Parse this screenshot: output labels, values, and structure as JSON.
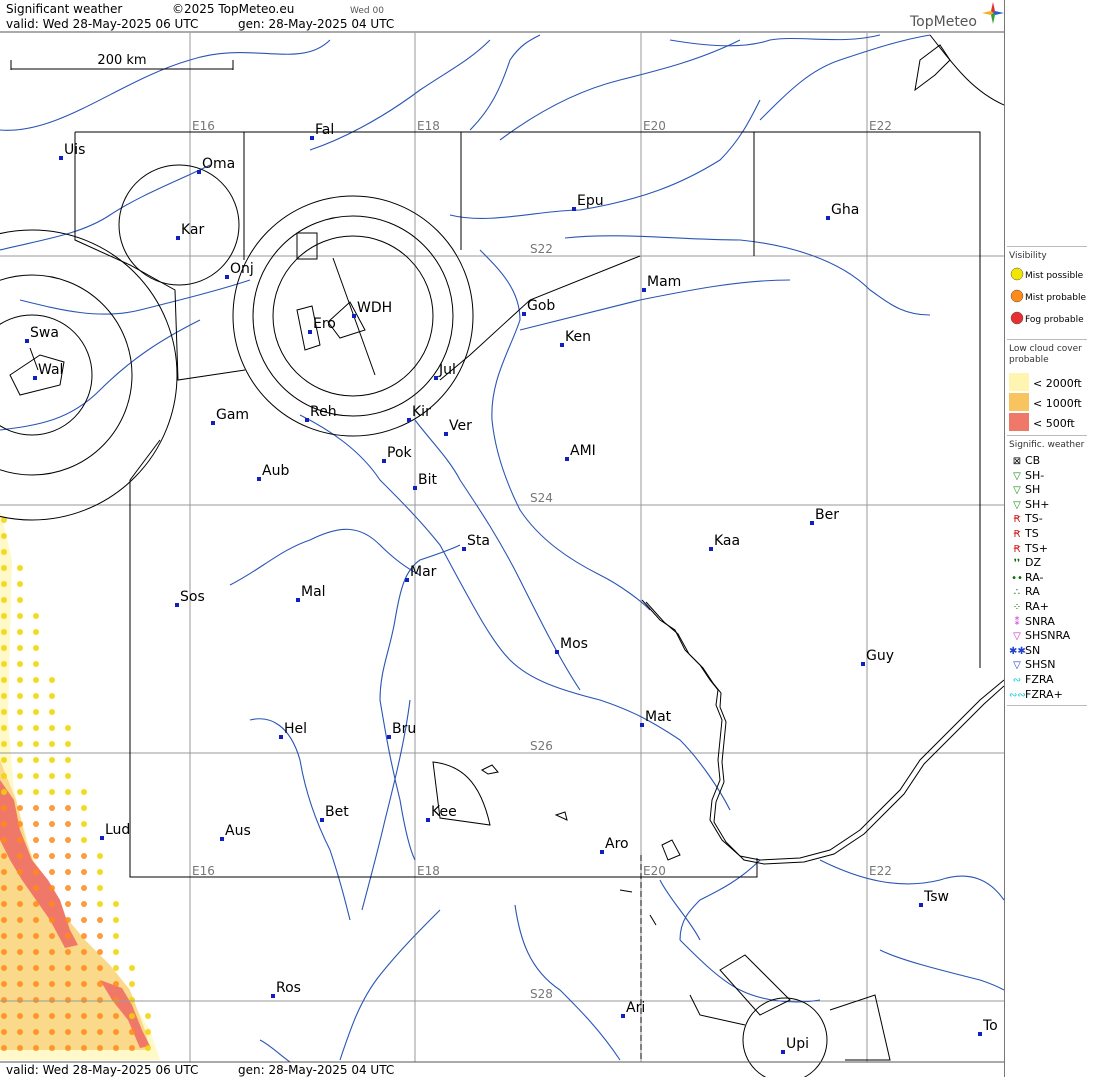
{
  "header": {
    "title": "Significant weather",
    "copyright": "©2025 TopMeteo.eu",
    "run": "Wed 00",
    "valid": "valid:  Wed  28-May-2025  06 UTC",
    "gen": "gen: 28-May-2025 04 UTC",
    "brand": "TopMeteo"
  },
  "footer": {
    "valid": "valid:  Wed  28-May-2025  06 UTC",
    "gen": "gen: 28-May-2025 04 UTC"
  },
  "scale_label": "200 km",
  "grid": {
    "lon_top": [
      {
        "label": "E16",
        "x": 16
      },
      {
        "label": "E18",
        "x": 18
      },
      {
        "label": "E20",
        "x": 20
      },
      {
        "label": "E22",
        "x": 22
      }
    ],
    "lon_bottom": [
      {
        "label": "E16",
        "x": 16
      },
      {
        "label": "E18",
        "x": 18
      },
      {
        "label": "E20",
        "x": 20
      },
      {
        "label": "E22",
        "x": 22
      }
    ],
    "lat": [
      {
        "label": "S22",
        "y": -22
      },
      {
        "label": "S24",
        "y": -24
      },
      {
        "label": "S26",
        "y": -26
      },
      {
        "label": "S28",
        "y": -28
      }
    ]
  },
  "places": [
    {
      "name": "Uis"
    },
    {
      "name": "Fal"
    },
    {
      "name": "Oma"
    },
    {
      "name": "Kar"
    },
    {
      "name": "Epu"
    },
    {
      "name": "Gha"
    },
    {
      "name": "Onj"
    },
    {
      "name": "Mam"
    },
    {
      "name": "Gob"
    },
    {
      "name": "WDH"
    },
    {
      "name": "Ero"
    },
    {
      "name": "Swa"
    },
    {
      "name": "Ken"
    },
    {
      "name": "Wal"
    },
    {
      "name": "Jul"
    },
    {
      "name": "Gam"
    },
    {
      "name": "Reh"
    },
    {
      "name": "Kir"
    },
    {
      "name": "Ver"
    },
    {
      "name": "Pok"
    },
    {
      "name": "AMI"
    },
    {
      "name": "Aub"
    },
    {
      "name": "Bit"
    },
    {
      "name": "Ber"
    },
    {
      "name": "Sta"
    },
    {
      "name": "Kaa"
    },
    {
      "name": "Mar"
    },
    {
      "name": "Sos"
    },
    {
      "name": "Mal"
    },
    {
      "name": "Mos"
    },
    {
      "name": "Guy"
    },
    {
      "name": "Mat"
    },
    {
      "name": "Hel"
    },
    {
      "name": "Bru"
    },
    {
      "name": "Bet"
    },
    {
      "name": "Kee"
    },
    {
      "name": "Lud"
    },
    {
      "name": "Aus"
    },
    {
      "name": "Aro"
    },
    {
      "name": "Tsw"
    },
    {
      "name": "Ros"
    },
    {
      "name": "Ari"
    },
    {
      "name": "Upi"
    },
    {
      "name": "To"
    }
  ],
  "legend": {
    "visibility_title": "Visibility",
    "visibility": [
      {
        "label": "Mist possible",
        "color": "#f2e600"
      },
      {
        "label": "Mist probable",
        "color": "#ff8a1a"
      },
      {
        "label": "Fog probable",
        "color": "#e83030"
      }
    ],
    "cloud_title": "Low cloud cover probable",
    "cloud": [
      {
        "label": "< 2000ft",
        "color": "#fff4b0"
      },
      {
        "label": "< 1000ft",
        "color": "#f7c460"
      },
      {
        "label": "<   500ft",
        "color": "#f07868"
      }
    ],
    "wx_title": "Signific. weather",
    "wx": [
      {
        "label": "CB",
        "icon": "cb-icon",
        "color": "#000000"
      },
      {
        "label": "SH-",
        "icon": "shower-light-icon",
        "color": "#1a8a1a"
      },
      {
        "label": "SH",
        "icon": "shower-icon",
        "color": "#1a8a1a"
      },
      {
        "label": "SH+",
        "icon": "shower-heavy-icon",
        "color": "#1a8a1a"
      },
      {
        "label": "TS-",
        "icon": "thunder-light-icon",
        "color": "#d02020"
      },
      {
        "label": "TS",
        "icon": "thunder-icon",
        "color": "#d02020"
      },
      {
        "label": "TS+",
        "icon": "thunder-heavy-icon",
        "color": "#d02020"
      },
      {
        "label": "DZ",
        "icon": "drizzle-icon",
        "color": "#0a6a0a"
      },
      {
        "label": "RA-",
        "icon": "rain-light-icon",
        "color": "#0a6a0a"
      },
      {
        "label": "RA",
        "icon": "rain-icon",
        "color": "#0a6a0a"
      },
      {
        "label": "RA+",
        "icon": "rain-heavy-icon",
        "color": "#0a6a0a"
      },
      {
        "label": "SNRA",
        "icon": "sleet-icon",
        "color": "#d030d0"
      },
      {
        "label": "SHSNRA",
        "icon": "sleet-shower-icon",
        "color": "#d030d0"
      },
      {
        "label": "SN",
        "icon": "snow-icon",
        "color": "#2040d0"
      },
      {
        "label": "SHSN",
        "icon": "snow-shower-icon",
        "color": "#2040d0"
      },
      {
        "label": "FZRA",
        "icon": "freezing-rain-icon",
        "color": "#10c8e0"
      },
      {
        "label": "FZRA+",
        "icon": "freezing-rain-heavy-icon",
        "color": "#10c8e0"
      }
    ]
  },
  "colors": {
    "river": "#2a55b5",
    "grid": "#999999",
    "border": "#000000",
    "place": "#1020c0"
  }
}
